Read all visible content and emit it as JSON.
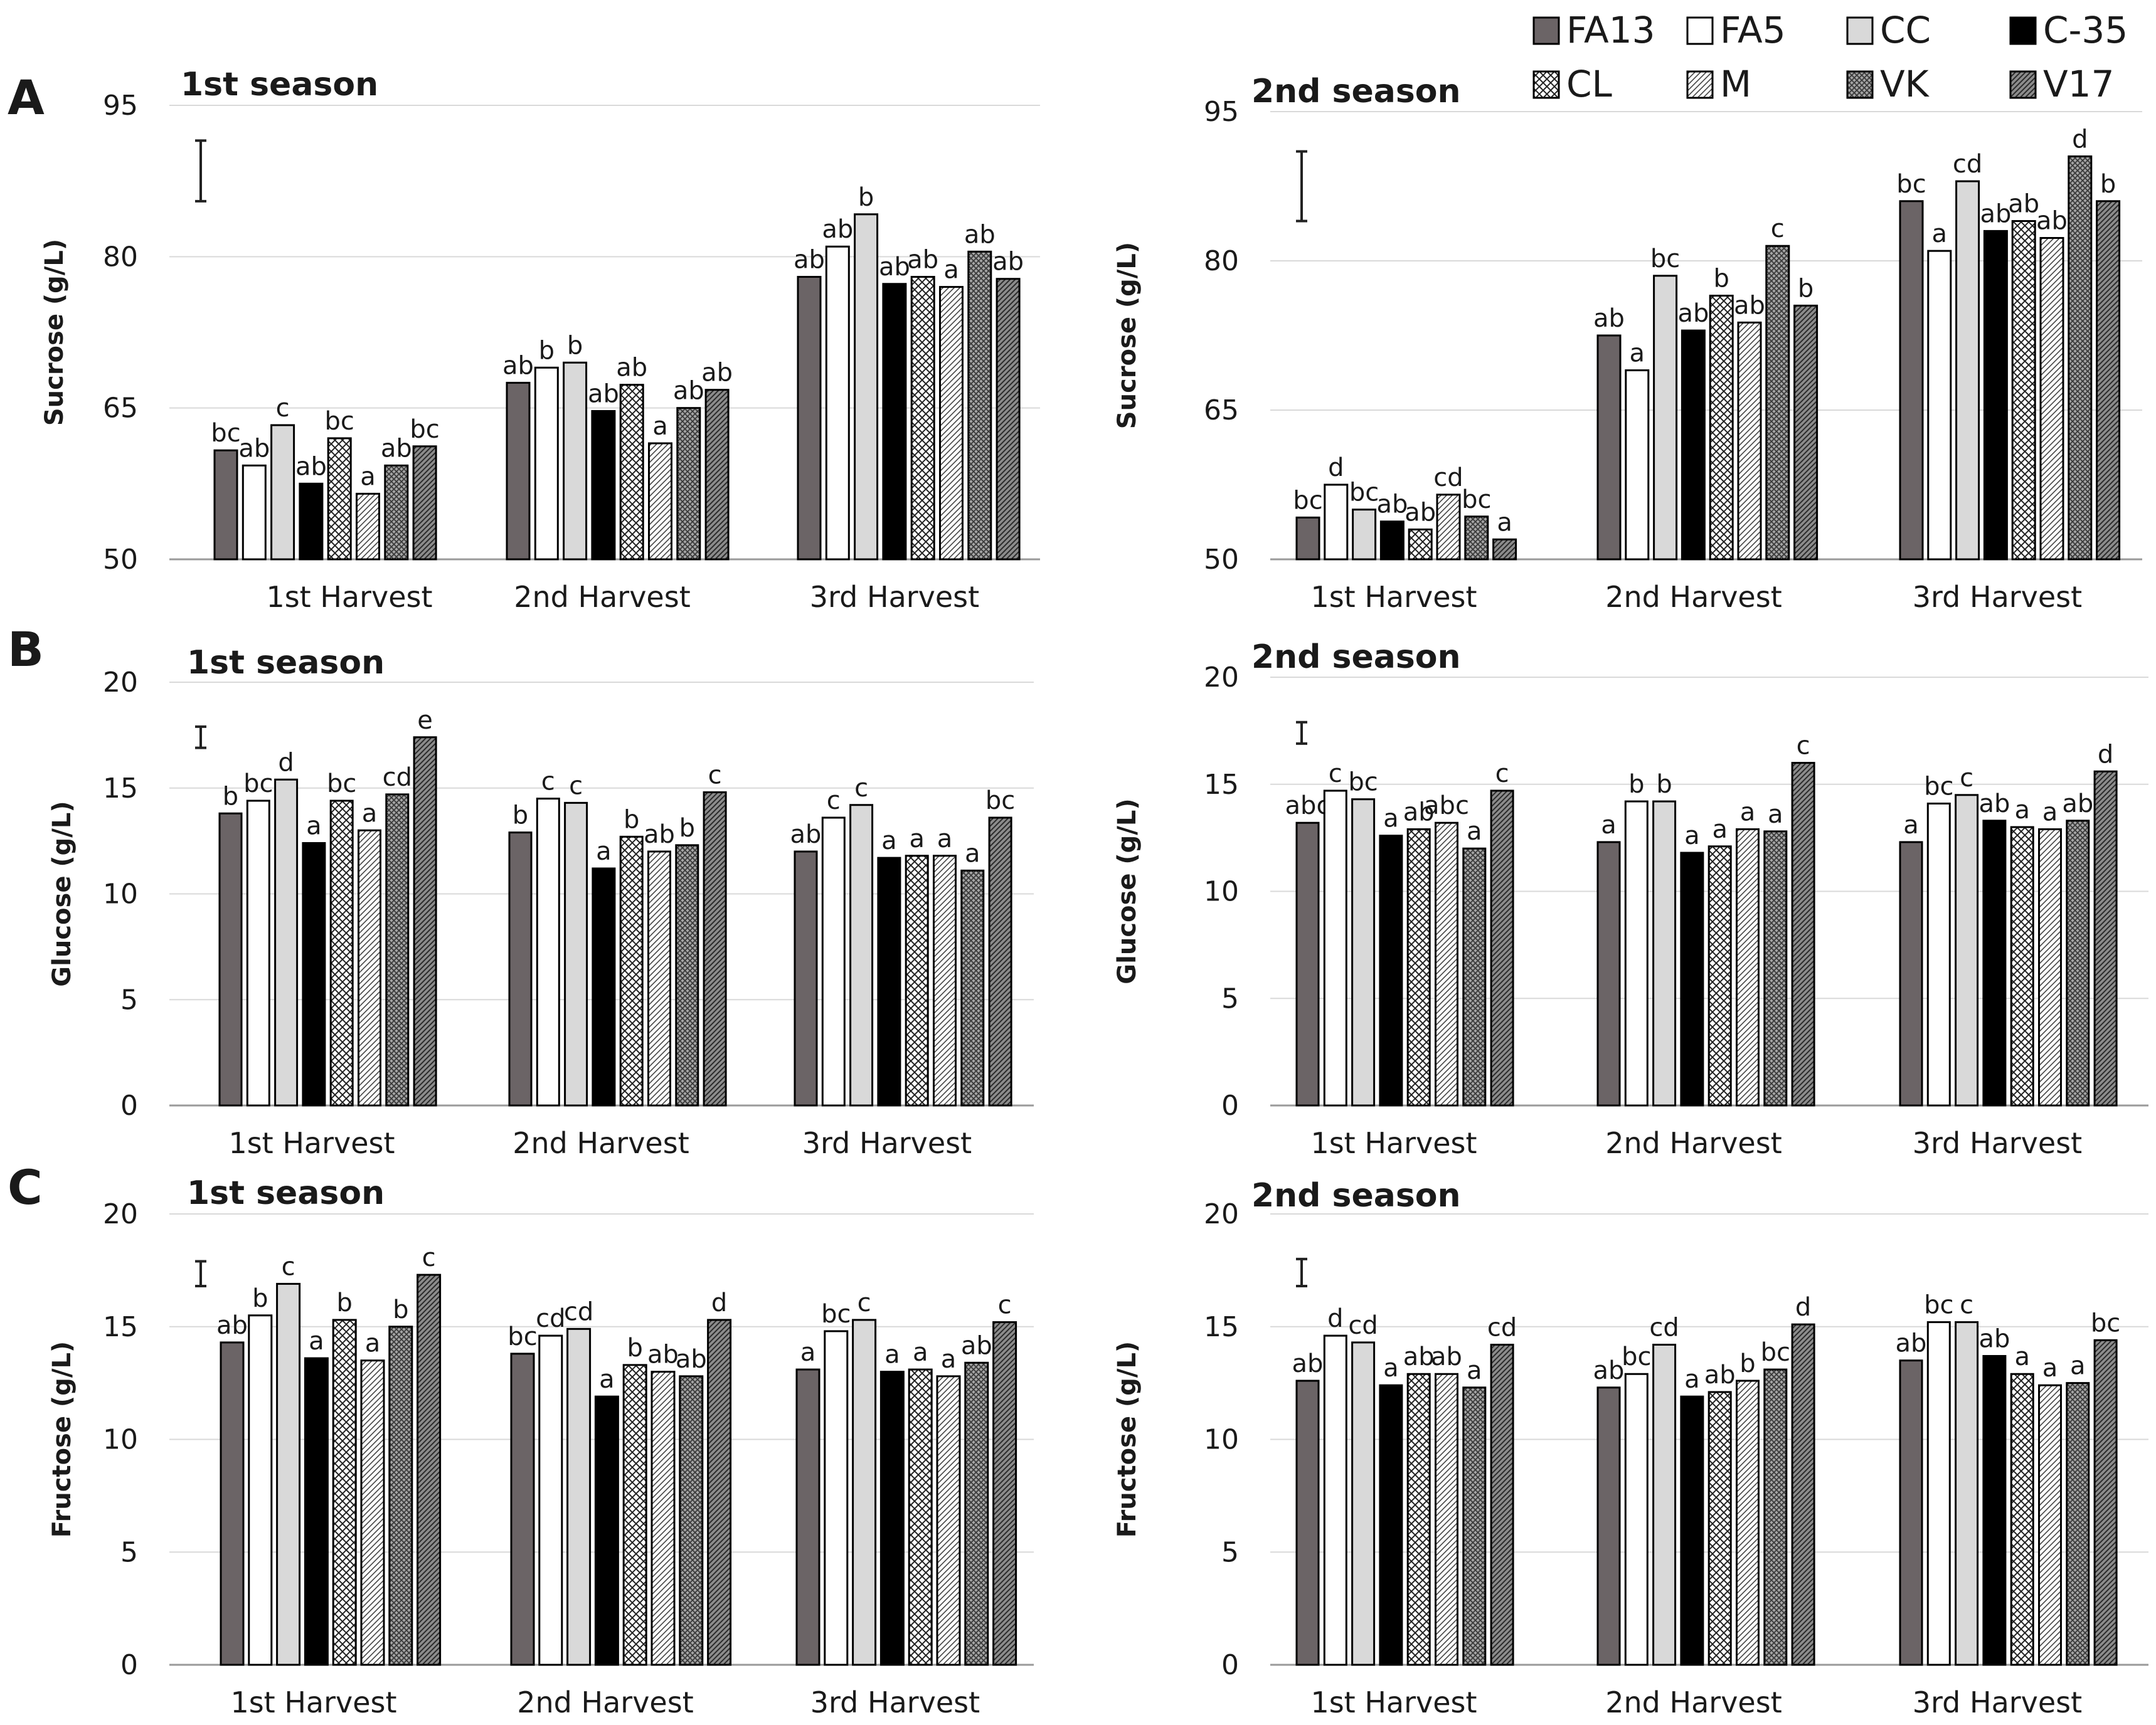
{
  "legend": {
    "entries": [
      {
        "name": "FA13",
        "pattern": "solid-dark",
        "color": "#6b6466"
      },
      {
        "name": "FA5",
        "pattern": "white",
        "color": "#ffffff"
      },
      {
        "name": "CC",
        "pattern": "solid-light",
        "color": "#d9d9d9"
      },
      {
        "name": "C-35",
        "pattern": "solid-black",
        "color": "#000000"
      },
      {
        "name": "CL",
        "pattern": "crosshatch",
        "color": "#ffffff"
      },
      {
        "name": "M",
        "pattern": "diagonal-fine",
        "color": "#ffffff"
      },
      {
        "name": "VK",
        "pattern": "crosshatch-dense",
        "color": "#a6a6a6"
      },
      {
        "name": "V17",
        "pattern": "diagonal-dark",
        "color": "#8c8c8c"
      }
    ]
  },
  "panel_letters": [
    "A",
    "B",
    "C"
  ],
  "chart_data": [
    {
      "id": "A1",
      "type": "bar",
      "panel": "A",
      "title": "1st season",
      "ylabel": "Sucrose (g/L)",
      "ylim": [
        50,
        95
      ],
      "yticks": [
        50,
        65,
        80,
        95
      ],
      "categories": [
        "1st Harvest",
        "2nd Harvest",
        "3rd Harvest"
      ],
      "error_bar": {
        "low": 85.5,
        "high": 91.5
      },
      "series": [
        {
          "name": "FA13",
          "values": [
            60.8,
            67.5,
            78.0
          ],
          "letters": [
            "bc",
            "ab",
            "ab"
          ]
        },
        {
          "name": "FA5",
          "values": [
            59.3,
            69.0,
            81.0
          ],
          "letters": [
            "ab",
            "b",
            "ab"
          ]
        },
        {
          "name": "CC",
          "values": [
            63.3,
            69.5,
            84.2
          ],
          "letters": [
            "c",
            "b",
            "b"
          ]
        },
        {
          "name": "C-35",
          "values": [
            57.5,
            64.7,
            77.3
          ],
          "letters": [
            "ab",
            "ab",
            "ab"
          ]
        },
        {
          "name": "CL",
          "values": [
            62.0,
            67.3,
            78.0
          ],
          "letters": [
            "bc",
            "ab",
            "ab"
          ]
        },
        {
          "name": "M",
          "values": [
            56.5,
            61.5,
            77.0
          ],
          "letters": [
            "a",
            "a",
            "a"
          ]
        },
        {
          "name": "VK",
          "values": [
            59.3,
            65.0,
            80.5
          ],
          "letters": [
            "ab",
            "ab",
            "ab"
          ]
        },
        {
          "name": "V17",
          "values": [
            61.2,
            66.8,
            77.8
          ],
          "letters": [
            "bc",
            "ab",
            "ab"
          ]
        }
      ]
    },
    {
      "id": "A2",
      "type": "bar",
      "panel": "A",
      "title": "2nd season",
      "ylabel": "Sucrose (g/L)",
      "ylim": [
        50,
        95
      ],
      "yticks": [
        50,
        65,
        80,
        95
      ],
      "categories": [
        "1st Harvest",
        "2nd Harvest",
        "3rd Harvest"
      ],
      "error_bar": {
        "low": 84.0,
        "high": 91.0
      },
      "series": [
        {
          "name": "FA13",
          "values": [
            54.2,
            72.5,
            86.0
          ],
          "letters": [
            "bc",
            "ab",
            "bc"
          ]
        },
        {
          "name": "FA5",
          "values": [
            57.5,
            69.0,
            81.0
          ],
          "letters": [
            "d",
            "a",
            "a"
          ]
        },
        {
          "name": "CC",
          "values": [
            55.0,
            78.5,
            88.0
          ],
          "letters": [
            "bc",
            "bc",
            "cd"
          ]
        },
        {
          "name": "C-35",
          "values": [
            53.8,
            73.0,
            83.0
          ],
          "letters": [
            "ab",
            "ab",
            "ab"
          ]
        },
        {
          "name": "CL",
          "values": [
            53.0,
            76.5,
            84.0
          ],
          "letters": [
            "ab",
            "b",
            "ab"
          ]
        },
        {
          "name": "M",
          "values": [
            56.5,
            73.8,
            82.3
          ],
          "letters": [
            "cd",
            "ab",
            "ab"
          ]
        },
        {
          "name": "VK",
          "values": [
            54.3,
            81.5,
            90.5
          ],
          "letters": [
            "bc",
            "c",
            "d"
          ]
        },
        {
          "name": "V17",
          "values": [
            52.0,
            75.5,
            86.0
          ],
          "letters": [
            "a",
            "b",
            "b"
          ]
        }
      ]
    },
    {
      "id": "B1",
      "type": "bar",
      "panel": "B",
      "title": "1st season",
      "ylabel": "Glucose (g/L)",
      "ylim": [
        0,
        20
      ],
      "yticks": [
        0,
        5,
        10,
        15,
        20
      ],
      "categories": [
        "1st Harvest",
        "2nd Harvest",
        "3rd Harvest"
      ],
      "error_bar": {
        "low": 16.9,
        "high": 17.9
      },
      "series": [
        {
          "name": "FA13",
          "values": [
            13.8,
            12.9,
            12.0
          ],
          "letters": [
            "b",
            "b",
            "ab"
          ]
        },
        {
          "name": "FA5",
          "values": [
            14.4,
            14.5,
            13.6
          ],
          "letters": [
            "bc",
            "c",
            "c"
          ]
        },
        {
          "name": "CC",
          "values": [
            15.4,
            14.3,
            14.2
          ],
          "letters": [
            "d",
            "c",
            "c"
          ]
        },
        {
          "name": "C-35",
          "values": [
            12.4,
            11.2,
            11.7
          ],
          "letters": [
            "a",
            "a",
            "a"
          ]
        },
        {
          "name": "CL",
          "values": [
            14.4,
            12.7,
            11.8
          ],
          "letters": [
            "bc",
            "b",
            "a"
          ]
        },
        {
          "name": "M",
          "values": [
            13.0,
            12.0,
            11.8
          ],
          "letters": [
            "a",
            "ab",
            "a"
          ]
        },
        {
          "name": "VK",
          "values": [
            14.7,
            12.3,
            11.1
          ],
          "letters": [
            "cd",
            "b",
            "a"
          ]
        },
        {
          "name": "V17",
          "values": [
            17.4,
            14.8,
            13.6
          ],
          "letters": [
            "e",
            "c",
            "bc"
          ]
        }
      ]
    },
    {
      "id": "B2",
      "type": "bar",
      "panel": "B",
      "title": "2nd season",
      "ylabel": "Glucose (g/L)",
      "ylim": [
        0,
        20
      ],
      "yticks": [
        0,
        5,
        10,
        15,
        20
      ],
      "categories": [
        "1st Harvest",
        "2nd Harvest",
        "3rd Harvest"
      ],
      "error_bar": {
        "low": 16.9,
        "high": 17.9
      },
      "series": [
        {
          "name": "FA13",
          "values": [
            13.2,
            12.3,
            12.3
          ],
          "letters": [
            "abc",
            "a",
            "a"
          ]
        },
        {
          "name": "FA5",
          "values": [
            14.7,
            14.2,
            14.1
          ],
          "letters": [
            "c",
            "b",
            "bc"
          ]
        },
        {
          "name": "CC",
          "values": [
            14.3,
            14.2,
            14.5
          ],
          "letters": [
            "bc",
            "b",
            "c"
          ]
        },
        {
          "name": "C-35",
          "values": [
            12.6,
            11.8,
            13.3
          ],
          "letters": [
            "a",
            "a",
            "ab"
          ]
        },
        {
          "name": "CL",
          "values": [
            12.9,
            12.1,
            13.0
          ],
          "letters": [
            "ab",
            "a",
            "a"
          ]
        },
        {
          "name": "M",
          "values": [
            13.2,
            12.9,
            12.9
          ],
          "letters": [
            "abc",
            "a",
            "a"
          ]
        },
        {
          "name": "VK",
          "values": [
            12.0,
            12.8,
            13.3
          ],
          "letters": [
            "a",
            "a",
            "ab"
          ]
        },
        {
          "name": "V17",
          "values": [
            14.7,
            16.0,
            15.6
          ],
          "letters": [
            "c",
            "c",
            "d"
          ]
        }
      ]
    },
    {
      "id": "C1",
      "type": "bar",
      "panel": "C",
      "title": "1st season",
      "ylabel": "Fructose (g/L)",
      "ylim": [
        0,
        20
      ],
      "yticks": [
        0,
        5,
        10,
        15,
        20
      ],
      "categories": [
        "1st Harvest",
        "2nd Harvest",
        "3rd Harvest"
      ],
      "error_bar": {
        "low": 16.8,
        "high": 17.9
      },
      "series": [
        {
          "name": "FA13",
          "values": [
            14.3,
            13.8,
            13.1
          ],
          "letters": [
            "ab",
            "bc",
            "a"
          ]
        },
        {
          "name": "FA5",
          "values": [
            15.5,
            14.6,
            14.8
          ],
          "letters": [
            "b",
            "cd",
            "bc"
          ]
        },
        {
          "name": "CC",
          "values": [
            16.9,
            14.9,
            15.3
          ],
          "letters": [
            "c",
            "cd",
            "c"
          ]
        },
        {
          "name": "C-35",
          "values": [
            13.6,
            11.9,
            13.0
          ],
          "letters": [
            "a",
            "a",
            "a"
          ]
        },
        {
          "name": "CL",
          "values": [
            15.3,
            13.3,
            13.1
          ],
          "letters": [
            "b",
            "b",
            "a"
          ]
        },
        {
          "name": "M",
          "values": [
            13.5,
            13.0,
            12.8
          ],
          "letters": [
            "a",
            "ab",
            "a"
          ]
        },
        {
          "name": "VK",
          "values": [
            15.0,
            12.8,
            13.4
          ],
          "letters": [
            "b",
            "ab",
            "ab"
          ]
        },
        {
          "name": "V17",
          "values": [
            17.3,
            15.3,
            15.2
          ],
          "letters": [
            "c",
            "d",
            "c"
          ]
        }
      ]
    },
    {
      "id": "C2",
      "type": "bar",
      "panel": "C",
      "title": "2nd season",
      "ylabel": "Fructose (g/L)",
      "ylim": [
        0,
        20
      ],
      "yticks": [
        0,
        5,
        10,
        15,
        20
      ],
      "categories": [
        "1st Harvest",
        "2nd Harvest",
        "3rd Harvest"
      ],
      "error_bar": {
        "low": 16.8,
        "high": 18.0
      },
      "series": [
        {
          "name": "FA13",
          "values": [
            12.6,
            12.3,
            13.5
          ],
          "letters": [
            "ab",
            "ab",
            "ab"
          ]
        },
        {
          "name": "FA5",
          "values": [
            14.6,
            12.9,
            15.2
          ],
          "letters": [
            "d",
            "bc",
            "bc"
          ]
        },
        {
          "name": "CC",
          "values": [
            14.3,
            14.2,
            15.2
          ],
          "letters": [
            "cd",
            "cd",
            "c"
          ]
        },
        {
          "name": "C-35",
          "values": [
            12.4,
            11.9,
            13.7
          ],
          "letters": [
            "a",
            "a",
            "ab"
          ]
        },
        {
          "name": "CL",
          "values": [
            12.9,
            12.1,
            12.9
          ],
          "letters": [
            "ab",
            "ab",
            "a"
          ]
        },
        {
          "name": "M",
          "values": [
            12.9,
            12.6,
            12.4
          ],
          "letters": [
            "ab",
            "b",
            "a"
          ]
        },
        {
          "name": "VK",
          "values": [
            12.3,
            13.1,
            12.5
          ],
          "letters": [
            "a",
            "bc",
            "a"
          ]
        },
        {
          "name": "V17",
          "values": [
            14.2,
            15.1,
            14.4
          ],
          "letters": [
            "cd",
            "d",
            "bc"
          ]
        }
      ]
    }
  ]
}
